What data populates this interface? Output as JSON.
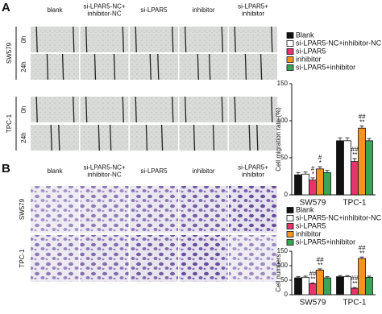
{
  "panel_a": {
    "label": "A",
    "columns": [
      [
        "blank"
      ],
      [
        "si-LPAR5-NC+",
        "inhibitor-NC"
      ],
      [
        "si-LPAR5"
      ],
      [
        "inhibitor"
      ],
      [
        "si-LPAR5+",
        "inhibitor"
      ]
    ],
    "cell_lines": [
      "SW579",
      "TPC-1"
    ],
    "times": [
      "0h",
      "24h"
    ]
  },
  "panel_b": {
    "label": "B",
    "columns": [
      [
        "blank"
      ],
      [
        "si-LPAR5-NC+",
        "inhibitor-NC"
      ],
      [
        "si-LPAR5"
      ],
      [
        "inhibitor"
      ],
      [
        "si-LPAR5+",
        "inhibitor"
      ]
    ],
    "cell_lines": [
      "SW579",
      "TPC-1"
    ]
  },
  "chart_data": [
    {
      "type": "bar",
      "y_label": "Cell migration rate (%)",
      "categories": [
        "SW579",
        "TPC-1"
      ],
      "ylim": [
        0,
        150
      ],
      "yticks": [
        0,
        50,
        100,
        150
      ],
      "series": [
        {
          "name": "Blank",
          "color": "#111111",
          "values": [
            27,
            73
          ],
          "errors": [
            3,
            4
          ],
          "annotations": [
            null,
            null
          ]
        },
        {
          "name": "si-LPAR5-NC+inhibitor-NC",
          "color": "#ffffff",
          "values": [
            28,
            73
          ],
          "errors": [
            3,
            4
          ],
          "annotations": [
            null,
            null
          ]
        },
        {
          "name": "si-LPAR5",
          "color": "#e8336b",
          "values": [
            20,
            45
          ],
          "errors": [
            3,
            4
          ],
          "annotations": [
            [
              "#",
              "*"
            ],
            [
              "##",
              "**"
            ]
          ]
        },
        {
          "name": "inhibitor",
          "color": "#f7941d",
          "values": [
            35,
            90
          ],
          "errors": [
            3,
            3
          ],
          "annotations": [
            [
              "#",
              "*"
            ],
            [
              "##",
              "**"
            ]
          ]
        },
        {
          "name": "si-LPAR5+inhibitor",
          "color": "#3aa655",
          "values": [
            30,
            73
          ],
          "errors": [
            3,
            3
          ],
          "annotations": [
            null,
            null
          ]
        }
      ]
    },
    {
      "type": "bar",
      "y_label": "Cell numbers",
      "categories": [
        "SW579",
        "TPC-1"
      ],
      "ylim": [
        0,
        150
      ],
      "yticks": [
        0,
        50,
        100,
        150
      ],
      "series": [
        {
          "name": "Blank",
          "color": "#111111",
          "values": [
            58,
            62
          ],
          "errors": [
            4,
            4
          ],
          "annotations": [
            null,
            null
          ]
        },
        {
          "name": "si-LPAR5-NC+inhibitor-NC",
          "color": "#ffffff",
          "values": [
            60,
            62
          ],
          "errors": [
            4,
            4
          ],
          "annotations": [
            null,
            null
          ]
        },
        {
          "name": "si-LPAR5",
          "color": "#e8336b",
          "values": [
            38,
            22
          ],
          "errors": [
            3,
            3
          ],
          "annotations": [
            [
              "##",
              "**"
            ],
            [
              "##",
              "**"
            ]
          ]
        },
        {
          "name": "inhibitor",
          "color": "#f7941d",
          "values": [
            85,
            125
          ],
          "errors": [
            4,
            5
          ],
          "annotations": [
            [
              "##",
              "**"
            ],
            [
              "##",
              "**"
            ]
          ]
        },
        {
          "name": "si-LPAR5+inhibitor",
          "color": "#3aa655",
          "values": [
            58,
            60
          ],
          "errors": [
            4,
            4
          ],
          "annotations": [
            null,
            null
          ]
        }
      ]
    }
  ]
}
